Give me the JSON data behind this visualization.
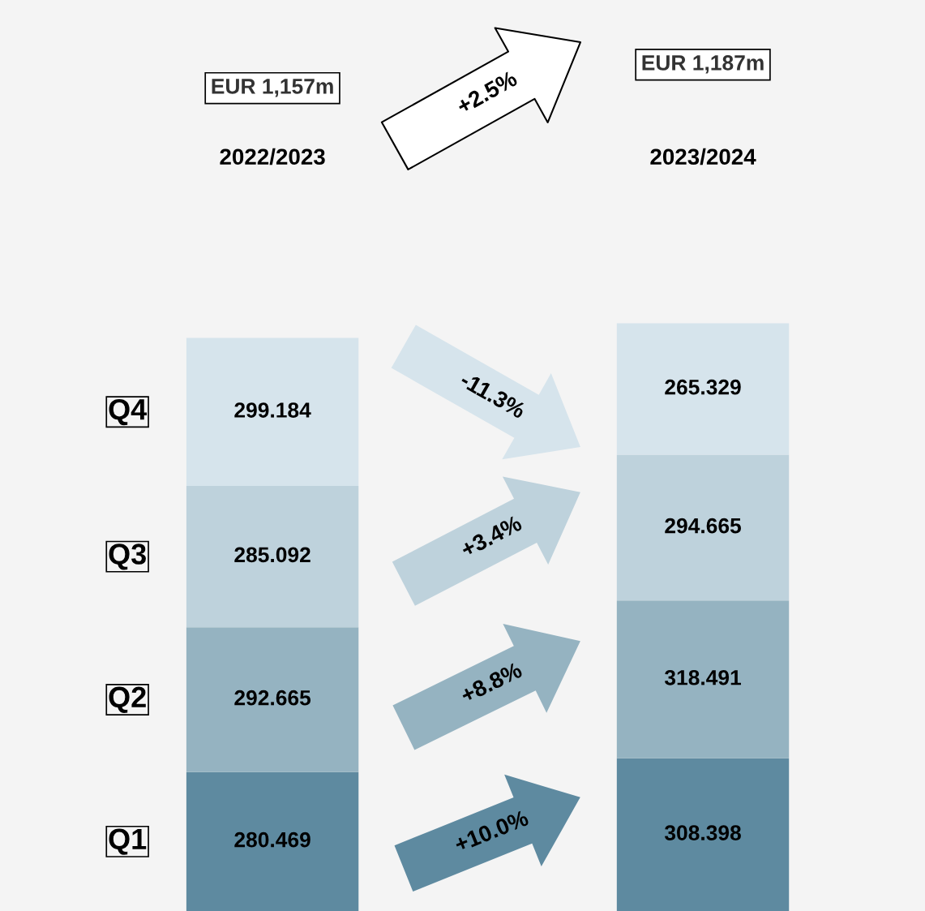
{
  "chart_data": {
    "type": "bar",
    "stacked": true,
    "categories": [
      "2022/2023",
      "2023/2024"
    ],
    "series": [
      {
        "name": "Q1",
        "color": "#5e8aa0",
        "values": [
          280.469,
          308.398
        ]
      },
      {
        "name": "Q2",
        "color": "#95b3c1",
        "values": [
          292.665,
          318.491
        ]
      },
      {
        "name": "Q3",
        "color": "#bed2dc",
        "values": [
          285.092,
          294.665
        ]
      },
      {
        "name": "Q4",
        "color": "#d6e4ec",
        "values": [
          299.184,
          265.329
        ]
      }
    ],
    "data_labels": true,
    "annotations": [
      "EUR 1,157m",
      "EUR 1,187m",
      "+2.5%",
      "-11.3%",
      "+3.4%",
      "+8.8%",
      "+10.0%"
    ],
    "legend": false
  }
}
